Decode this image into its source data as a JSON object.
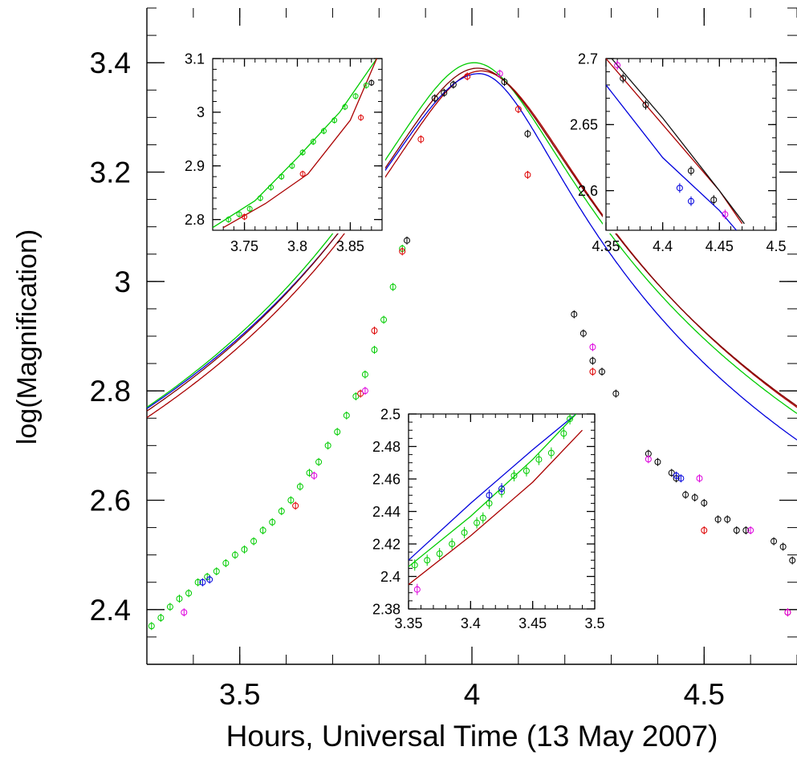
{
  "chart_data": [
    {
      "type": "line",
      "xlabel": "Hours, Universal Time (13 May 2007)",
      "ylabel": "log(Magnification)",
      "xlim": [
        3.3,
        4.7
      ],
      "ylim": [
        2.3,
        3.5
      ],
      "xticks": [
        3.5,
        4.0,
        4.5
      ],
      "xtick_labels": [
        "3.5",
        "4",
        "4.5"
      ],
      "yticks": [
        2.4,
        2.6,
        2.8,
        3.0,
        3.2,
        3.4
      ],
      "ytick_labels": [
        "2.4",
        "2.6",
        "2.8",
        "3",
        "3.2",
        "3.4"
      ],
      "grid": false,
      "legend": "none",
      "models": [
        {
          "color": "#aa0000",
          "peak_x": 4.02,
          "peak_y": 3.385,
          "rise_w": 0.172,
          "fall_w": 0.17
        },
        {
          "color": "#00cc00",
          "peak_x": 4.005,
          "peak_y": 3.4,
          "rise_w": 0.17,
          "fall_w": 0.163
        },
        {
          "color": "#0000dd",
          "peak_x": 4.015,
          "peak_y": 3.38,
          "rise_w": 0.18,
          "fall_w": 0.15
        },
        {
          "color": "#800000",
          "peak_x": 4.012,
          "peak_y": 3.39,
          "rise_w": 0.173,
          "fall_w": 0.171
        }
      ],
      "series": [
        {
          "color": "#00cc00",
          "points": [
            [
              3.31,
              2.37
            ],
            [
              3.33,
              2.385
            ],
            [
              3.35,
              2.405
            ],
            [
              3.37,
              2.42
            ],
            [
              3.39,
              2.43
            ],
            [
              3.41,
              2.45
            ],
            [
              3.43,
              2.46
            ],
            [
              3.45,
              2.47
            ],
            [
              3.47,
              2.485
            ],
            [
              3.49,
              2.5
            ],
            [
              3.51,
              2.51
            ],
            [
              3.53,
              2.525
            ],
            [
              3.55,
              2.545
            ],
            [
              3.57,
              2.56
            ],
            [
              3.59,
              2.58
            ],
            [
              3.61,
              2.6
            ],
            [
              3.63,
              2.625
            ],
            [
              3.65,
              2.65
            ],
            [
              3.67,
              2.67
            ],
            [
              3.69,
              2.7
            ],
            [
              3.71,
              2.725
            ],
            [
              3.73,
              2.755
            ],
            [
              3.75,
              2.79
            ],
            [
              3.77,
              2.83
            ],
            [
              3.79,
              2.875
            ],
            [
              3.81,
              2.93
            ],
            [
              3.83,
              2.99
            ],
            [
              3.85,
              3.06
            ]
          ]
        },
        {
          "color": "#dd0000",
          "points": [
            [
              3.62,
              2.59
            ],
            [
              3.76,
              2.795
            ],
            [
              3.79,
              2.91
            ],
            [
              3.85,
              3.055
            ],
            [
              3.89,
              3.26
            ],
            [
              3.99,
              3.375
            ],
            [
              4.1,
              3.315
            ],
            [
              4.12,
              3.195
            ],
            [
              4.26,
              2.835
            ],
            [
              4.5,
              2.545
            ],
            [
              4.68,
              2.395
            ]
          ]
        },
        {
          "color": "#000000",
          "points": [
            [
              3.86,
              3.075
            ],
            [
              3.92,
              3.335
            ],
            [
              3.94,
              3.345
            ],
            [
              3.96,
              3.36
            ],
            [
              4.07,
              3.365
            ],
            [
              4.12,
              3.27
            ],
            [
              4.22,
              2.94
            ],
            [
              4.24,
              2.905
            ],
            [
              4.26,
              2.855
            ],
            [
              4.28,
              2.835
            ],
            [
              4.31,
              2.795
            ],
            [
              4.38,
              2.685
            ],
            [
              4.4,
              2.67
            ],
            [
              4.43,
              2.65
            ],
            [
              4.44,
              2.64
            ],
            [
              4.46,
              2.61
            ],
            [
              4.48,
              2.605
            ],
            [
              4.5,
              2.595
            ],
            [
              4.53,
              2.565
            ],
            [
              4.55,
              2.565
            ],
            [
              4.57,
              2.545
            ],
            [
              4.59,
              2.545
            ],
            [
              4.65,
              2.525
            ],
            [
              4.67,
              2.515
            ],
            [
              4.69,
              2.49
            ]
          ]
        },
        {
          "color": "#dd00dd",
          "points": [
            [
              3.38,
              2.395
            ],
            [
              3.66,
              2.645
            ],
            [
              3.77,
              2.8
            ],
            [
              4.06,
              3.38
            ],
            [
              4.26,
              2.88
            ],
            [
              4.38,
              2.675
            ],
            [
              4.49,
              2.64
            ],
            [
              4.6,
              2.545
            ],
            [
              4.68,
              2.395
            ]
          ]
        },
        {
          "color": "#0000dd",
          "points": [
            [
              3.42,
              2.45
            ],
            [
              3.435,
              2.455
            ],
            [
              4.44,
              2.645
            ],
            [
              4.45,
              2.64
            ]
          ]
        }
      ]
    },
    {
      "type": "line",
      "xlim": [
        3.72,
        3.88
      ],
      "ylim": [
        2.78,
        3.1
      ],
      "xticks": [
        3.75,
        3.8,
        3.85
      ],
      "xtick_labels": [
        "3.75",
        "3.8",
        "3.85"
      ],
      "yticks": [
        2.8,
        2.9,
        3.0,
        3.1
      ],
      "ytick_labels": [
        "2.8",
        "2.9",
        "3",
        "3.1"
      ],
      "lines": [
        {
          "color": "#00cc00",
          "points": [
            [
              3.72,
              2.785
            ],
            [
              3.76,
              2.835
            ],
            [
              3.8,
              2.915
            ],
            [
              3.84,
              3.0
            ],
            [
              3.875,
              3.1
            ]
          ]
        },
        {
          "color": "#aa0000",
          "points": [
            [
              3.73,
              2.785
            ],
            [
              3.77,
              2.83
            ],
            [
              3.81,
              2.885
            ],
            [
              3.85,
              2.985
            ],
            [
              3.875,
              3.1
            ]
          ]
        }
      ],
      "series": [
        {
          "color": "#00cc00",
          "points": [
            [
              3.735,
              2.8
            ],
            [
              3.745,
              2.81
            ],
            [
              3.755,
              2.82
            ],
            [
              3.765,
              2.84
            ],
            [
              3.775,
              2.86
            ],
            [
              3.785,
              2.88
            ],
            [
              3.795,
              2.9
            ],
            [
              3.805,
              2.925
            ],
            [
              3.815,
              2.945
            ],
            [
              3.825,
              2.965
            ],
            [
              3.835,
              2.985
            ],
            [
              3.845,
              3.01
            ],
            [
              3.855,
              3.03
            ],
            [
              3.865,
              3.05
            ]
          ]
        },
        {
          "color": "#dd0000",
          "points": [
            [
              3.75,
              2.805
            ],
            [
              3.805,
              2.885
            ],
            [
              3.86,
              2.99
            ]
          ]
        },
        {
          "color": "#000000",
          "points": [
            [
              3.87,
              3.055
            ]
          ]
        }
      ]
    },
    {
      "type": "line",
      "xlim": [
        4.35,
        4.5
      ],
      "ylim": [
        2.57,
        2.7
      ],
      "xticks": [
        4.35,
        4.4,
        4.45,
        4.5
      ],
      "xtick_labels": [
        "4.35",
        "4.4",
        "4.45",
        "4.5"
      ],
      "yticks": [
        2.6,
        2.65,
        2.7
      ],
      "ytick_labels": [
        "2.6",
        "2.65",
        "2.7"
      ],
      "lines": [
        {
          "color": "#aa0000",
          "points": [
            [
              4.35,
              2.7
            ],
            [
              4.4,
              2.65
            ],
            [
              4.45,
              2.6
            ],
            [
              4.47,
              2.575
            ]
          ]
        },
        {
          "color": "#0000dd",
          "points": [
            [
              4.35,
              2.68
            ],
            [
              4.4,
              2.625
            ],
            [
              4.45,
              2.585
            ],
            [
              4.465,
              2.57
            ]
          ]
        },
        {
          "color": "#111111",
          "points": [
            [
              4.355,
              2.7
            ],
            [
              4.4,
              2.655
            ],
            [
              4.45,
              2.6
            ],
            [
              4.472,
              2.575
            ]
          ]
        }
      ],
      "series": [
        {
          "color": "#dd00dd",
          "points": [
            [
              4.36,
              2.695
            ],
            [
              4.455,
              2.582
            ]
          ]
        },
        {
          "color": "#000000",
          "points": [
            [
              4.365,
              2.685
            ],
            [
              4.385,
              2.665
            ],
            [
              4.425,
              2.615
            ],
            [
              4.445,
              2.593
            ]
          ]
        },
        {
          "color": "#0000dd",
          "points": [
            [
              4.415,
              2.602
            ],
            [
              4.425,
              2.592
            ]
          ]
        }
      ]
    },
    {
      "type": "line",
      "xlim": [
        3.35,
        3.5
      ],
      "ylim": [
        2.38,
        2.5
      ],
      "xticks": [
        3.35,
        3.4,
        3.45,
        3.5
      ],
      "xtick_labels": [
        "3.35",
        "3.4",
        "3.45",
        "3.5"
      ],
      "yticks": [
        2.38,
        2.4,
        2.42,
        2.44,
        2.46,
        2.48,
        2.5
      ],
      "ytick_labels": [
        "2.38",
        "2.4",
        "2.42",
        "2.44",
        "2.46",
        "2.48",
        "2.5"
      ],
      "lines": [
        {
          "color": "#0000dd",
          "points": [
            [
              3.35,
              2.41
            ],
            [
              3.4,
              2.445
            ],
            [
              3.45,
              2.478
            ],
            [
              3.485,
              2.5
            ]
          ]
        },
        {
          "color": "#00cc00",
          "points": [
            [
              3.35,
              2.406
            ],
            [
              3.4,
              2.437
            ],
            [
              3.45,
              2.472
            ],
            [
              3.485,
              2.5
            ]
          ]
        },
        {
          "color": "#aa0000",
          "points": [
            [
              3.35,
              2.395
            ],
            [
              3.4,
              2.425
            ],
            [
              3.45,
              2.458
            ],
            [
              3.49,
              2.49
            ]
          ]
        }
      ],
      "series": [
        {
          "color": "#00cc00",
          "points": [
            [
              3.355,
              2.407
            ],
            [
              3.365,
              2.41
            ],
            [
              3.375,
              2.414
            ],
            [
              3.385,
              2.42
            ],
            [
              3.395,
              2.427
            ],
            [
              3.405,
              2.433
            ],
            [
              3.41,
              2.436
            ],
            [
              3.415,
              2.445
            ],
            [
              3.425,
              2.452
            ],
            [
              3.435,
              2.462
            ],
            [
              3.445,
              2.465
            ],
            [
              3.455,
              2.472
            ],
            [
              3.465,
              2.476
            ],
            [
              3.475,
              2.488
            ],
            [
              3.48,
              2.497
            ]
          ]
        },
        {
          "color": "#0000dd",
          "points": [
            [
              3.415,
              2.45
            ],
            [
              3.425,
              2.454
            ]
          ]
        },
        {
          "color": "#dd00dd",
          "points": [
            [
              3.357,
              2.392
            ]
          ]
        }
      ]
    }
  ]
}
